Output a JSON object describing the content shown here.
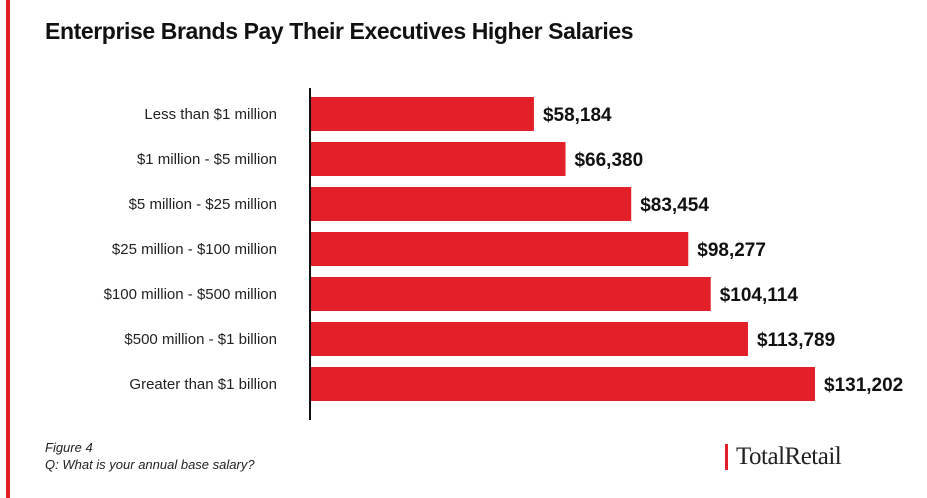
{
  "title": "Enterprise Brands Pay Their Executives Higher Salaries",
  "chart_data": {
    "type": "bar",
    "orientation": "horizontal",
    "categories": [
      "Less than $1 million",
      "$1 million - $5 million",
      "$5 million - $25 million",
      "$25 million - $100 million",
      "$100 million - $500 million",
      "$500 million - $1 billion",
      "Greater than $1 billion"
    ],
    "values": [
      58184,
      66380,
      83454,
      98277,
      104114,
      113789,
      131202
    ],
    "value_labels": [
      "$58,184",
      "$66,380",
      "$83,454",
      "$98,277",
      "$104,114",
      "$113,789",
      "$131,202"
    ],
    "bar_color": "#e3202a",
    "xlim": [
      0,
      131202
    ],
    "grid": false,
    "legend": "none"
  },
  "footer": {
    "figure": "Figure 4",
    "question": "Q: What is your annual base salary?",
    "logo": "TotalRetail"
  },
  "colors": {
    "accent": "#e3202a",
    "text": "#111111"
  }
}
